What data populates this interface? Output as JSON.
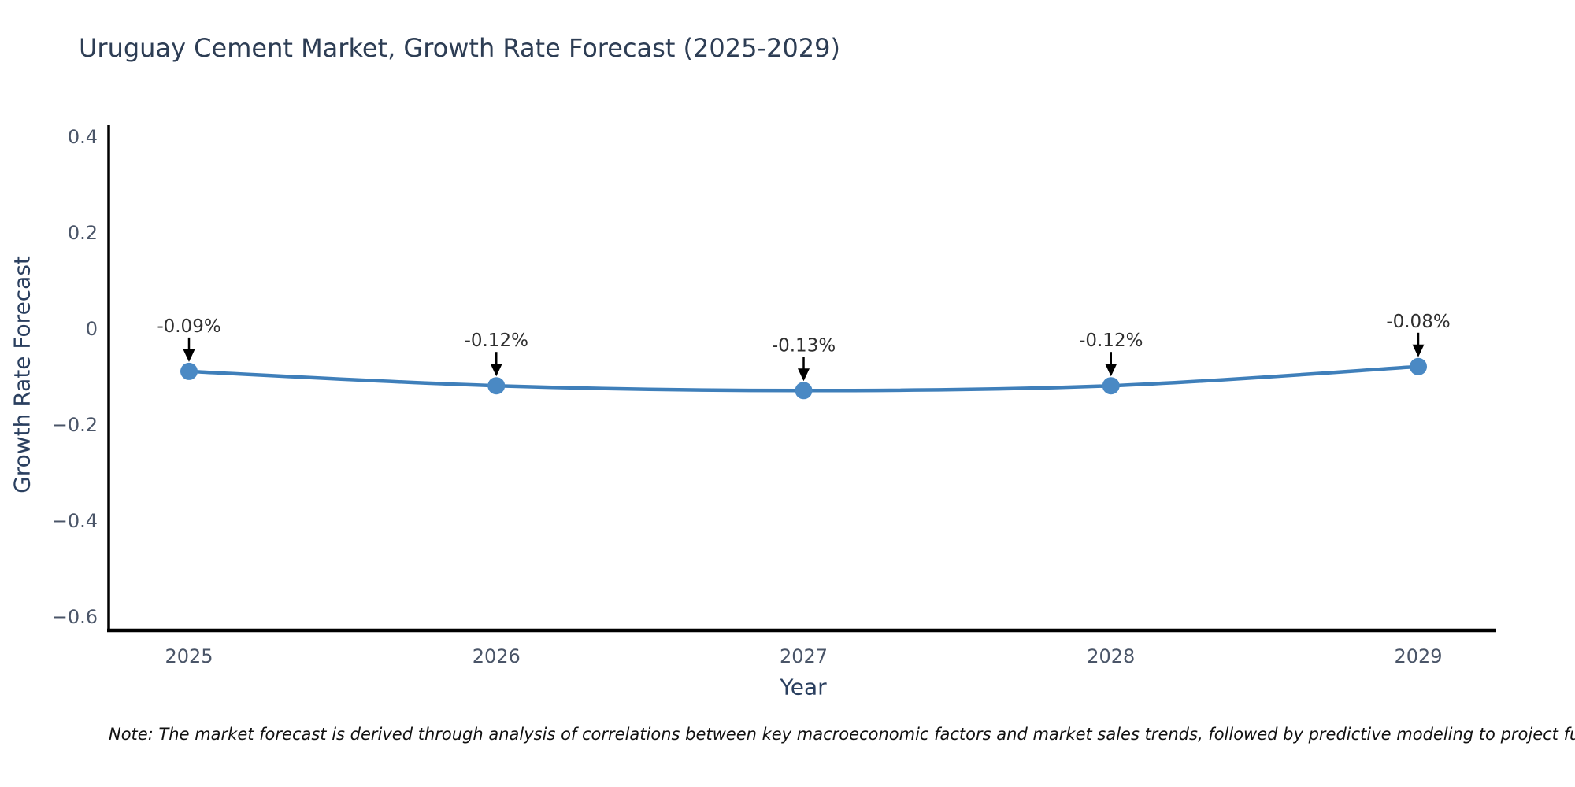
{
  "note": "Note: The market forecast is derived through analysis of correlations between key macroeconomic factors and market sales trends, followed by predictive modeling to project future sales",
  "chart_data": {
    "type": "line",
    "title": "Uruguay Cement Market, Growth Rate Forecast (2025-2029)",
    "xlabel": "Year",
    "ylabel": "Growth Rate Forecast",
    "x": [
      2025,
      2026,
      2027,
      2028,
      2029
    ],
    "xticks": [
      "2025",
      "2026",
      "2027",
      "2028",
      "2029"
    ],
    "values": [
      -0.09,
      -0.12,
      -0.13,
      -0.12,
      -0.08
    ],
    "point_labels": [
      "-0.09%",
      "-0.12%",
      "-0.13%",
      "-0.12%",
      "-0.08%"
    ],
    "yticks": [
      "0.4",
      "0.2",
      "0",
      "−0.2",
      "−0.4",
      "−0.6"
    ],
    "ytick_values": [
      0.4,
      0.2,
      0,
      -0.2,
      -0.4,
      -0.6
    ],
    "ylim": [
      -0.63,
      0.42
    ],
    "grid": false,
    "legend": "none",
    "line_shape": "spline",
    "colors": {
      "line": "#3f7fba",
      "marker": "#4a89c4",
      "axis": "#000000",
      "arrow": "#000000",
      "title": "#2d3d54",
      "tick": "#4a5568",
      "annotation": "#2f2f2f"
    }
  }
}
